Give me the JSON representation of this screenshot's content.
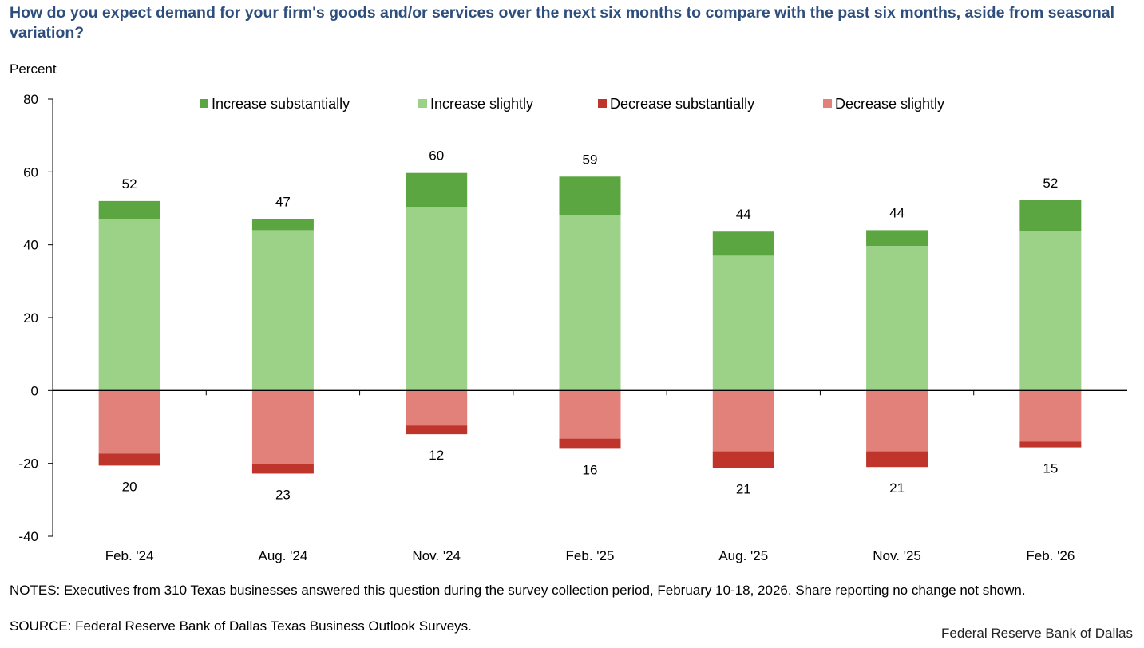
{
  "chart_data": {
    "type": "bar",
    "stacked": true,
    "title": "How do you expect demand for your firm's goods and/or services over the next six months to compare with the past six months, aside from seasonal variation?",
    "ylabel": "Percent",
    "xlabel": "",
    "ylim": [
      -40,
      80
    ],
    "yticks": [
      80,
      60,
      40,
      20,
      0,
      -20,
      -40
    ],
    "grid": false,
    "legend_position": "top",
    "categories": [
      "Feb. '24",
      "Aug. '24",
      "Nov. '24",
      "Feb. '25",
      "Aug. '25",
      "Nov. '25",
      "Feb. '26"
    ],
    "series": [
      {
        "name": "Increase substantially",
        "color": "#5ba640",
        "values": [
          5,
          3,
          9.5,
          10.7,
          6.6,
          4.3,
          8.4
        ]
      },
      {
        "name": "Increase slightly",
        "color": "#9bd288",
        "values": [
          47,
          44,
          50.2,
          48,
          37,
          39.7,
          43.8
        ]
      },
      {
        "name": "Decrease substantially",
        "color": "#c0352b",
        "values": [
          -3.3,
          -2.6,
          -2.4,
          -2.8,
          -4.6,
          -4.3,
          -1.6
        ]
      },
      {
        "name": "Decrease slightly",
        "color": "#e2807a",
        "values": [
          -17.3,
          -20.2,
          -9.6,
          -13.2,
          -16.7,
          -16.7,
          -14
        ]
      }
    ],
    "positive_totals": [
      52,
      47,
      60,
      59,
      44,
      44,
      52
    ],
    "negative_totals": [
      20,
      23,
      12,
      16,
      21,
      21,
      15
    ]
  },
  "notes": "NOTES: Executives from 310 Texas businesses answered this question during the survey collection period, February 10-18, 2026. Share reporting no change not shown.",
  "source": "SOURCE: Federal Reserve Bank of Dallas Texas Business Outlook Surveys.",
  "brand": "Federal Reserve Bank of Dallas"
}
